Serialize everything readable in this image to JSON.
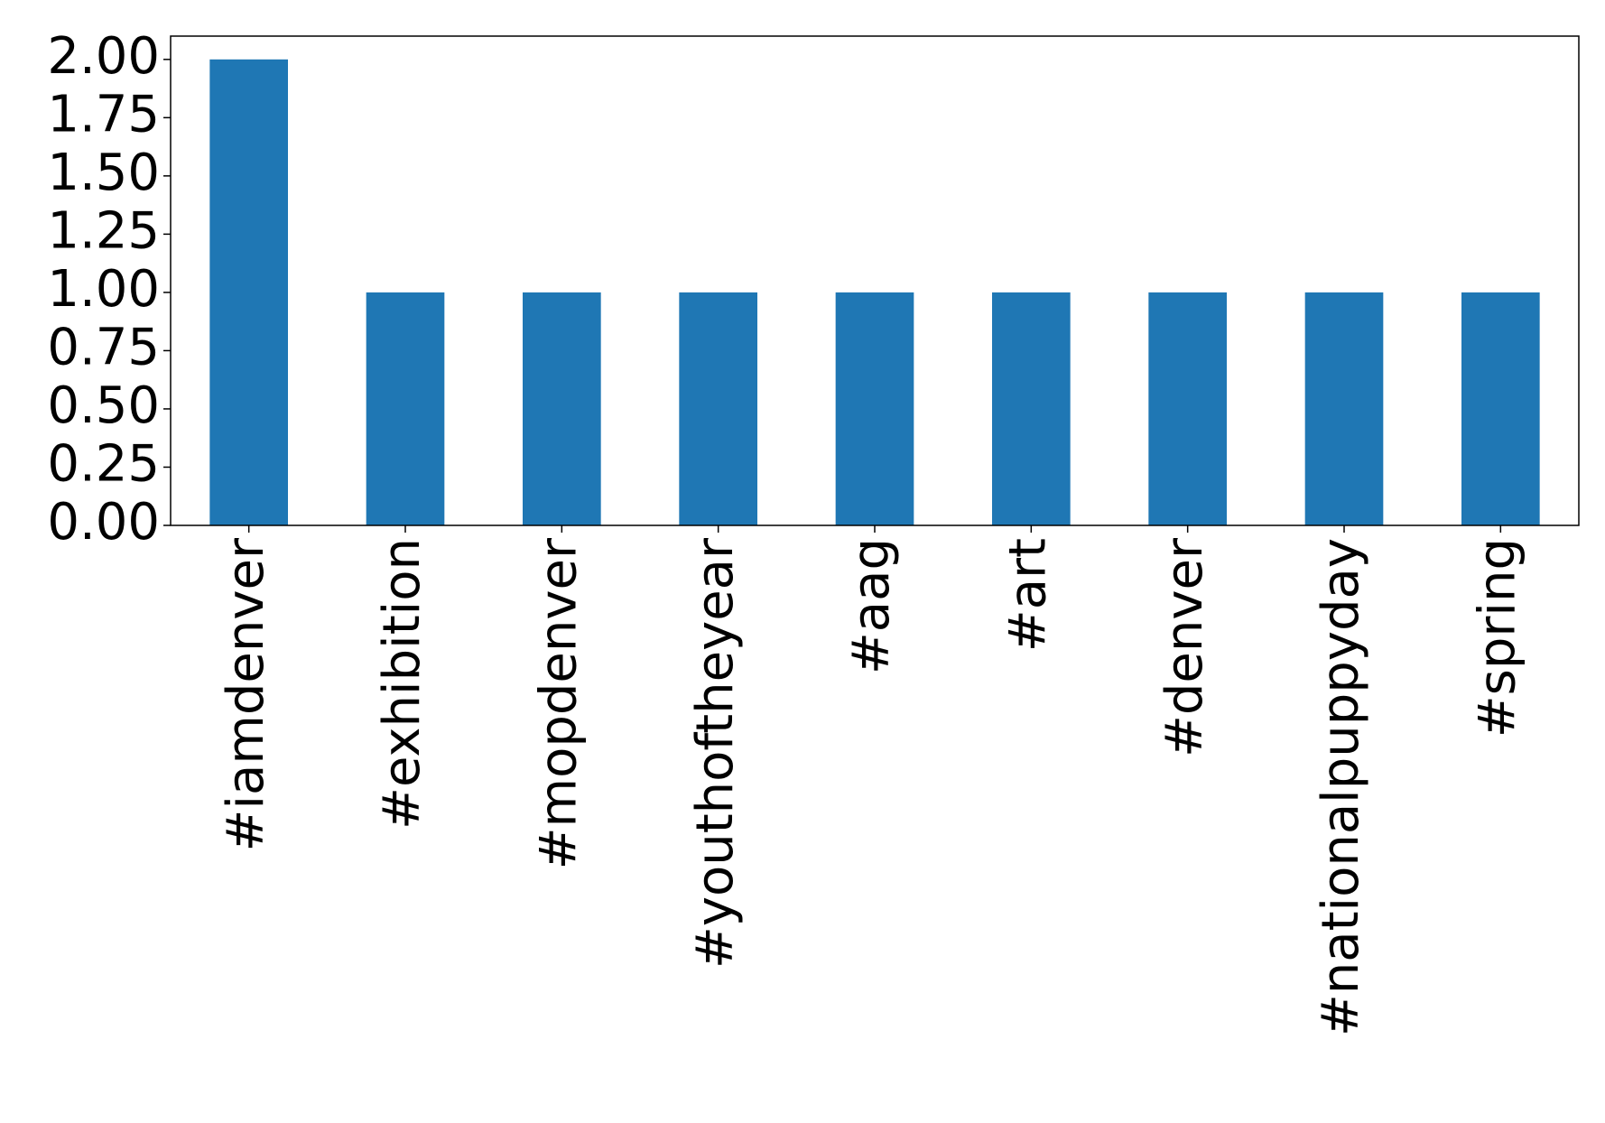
{
  "chart_data": {
    "type": "bar",
    "categories": [
      "#iamdenver",
      "#exhibition",
      "#mopdenver",
      "#youthoftheyear",
      "#aag",
      "#art",
      "#denver",
      "#nationalpuppyday",
      "#spring"
    ],
    "values": [
      2,
      1,
      1,
      1,
      1,
      1,
      1,
      1,
      1
    ],
    "color": "#1f77b4",
    "ylim": [
      0,
      2.1
    ],
    "yticks": [
      {
        "value": 0,
        "label": "0.00"
      },
      {
        "value": 0.25,
        "label": "0.25"
      },
      {
        "value": 0.5,
        "label": "0.50"
      },
      {
        "value": 0.75,
        "label": "0.75"
      },
      {
        "value": 1,
        "label": "1.00"
      },
      {
        "value": 1.25,
        "label": "1.25"
      },
      {
        "value": 1.5,
        "label": "1.50"
      },
      {
        "value": 1.75,
        "label": "1.75"
      },
      {
        "value": 2,
        "label": "2.00"
      }
    ],
    "grid": false
  }
}
